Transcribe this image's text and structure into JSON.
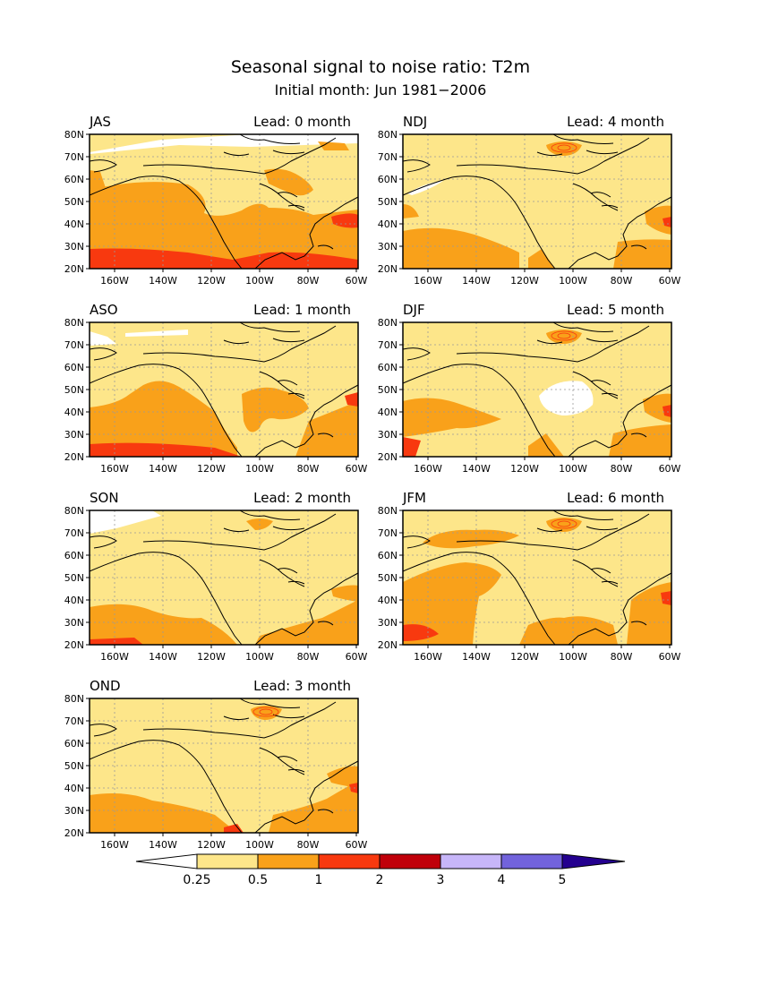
{
  "title": "Seasonal signal to noise ratio: T2m",
  "subtitle": "Initial month: Jun 1981−2006",
  "lat_labels": [
    "80N",
    "70N",
    "60N",
    "50N",
    "40N",
    "30N",
    "20N"
  ],
  "lon_labels": [
    "160W",
    "140W",
    "120W",
    "100W",
    "80W",
    "60W"
  ],
  "panels": [
    {
      "season": "JAS",
      "lead": "Lead: 0 month"
    },
    {
      "season": "NDJ",
      "lead": "Lead: 4 month"
    },
    {
      "season": "ASO",
      "lead": "Lead: 1 month"
    },
    {
      "season": "DJF",
      "lead": "Lead: 5 month"
    },
    {
      "season": "SON",
      "lead": "Lead: 2 month"
    },
    {
      "season": "JFM",
      "lead": "Lead: 6 month"
    },
    {
      "season": "OND",
      "lead": "Lead: 3 month"
    }
  ],
  "colorbar": {
    "labels": [
      "0.25",
      "0.5",
      "1",
      "2",
      "3",
      "4",
      "5"
    ],
    "colors": [
      "#ffffff",
      "#fde68a",
      "#f9a11a",
      "#f8390f",
      "#c0000a",
      "#c7b6f9",
      "#7263dc",
      "#24008f"
    ]
  },
  "palette": {
    "white": "#ffffff",
    "light": "#fde68a",
    "orange": "#f9a11a",
    "red": "#f8390f"
  }
}
